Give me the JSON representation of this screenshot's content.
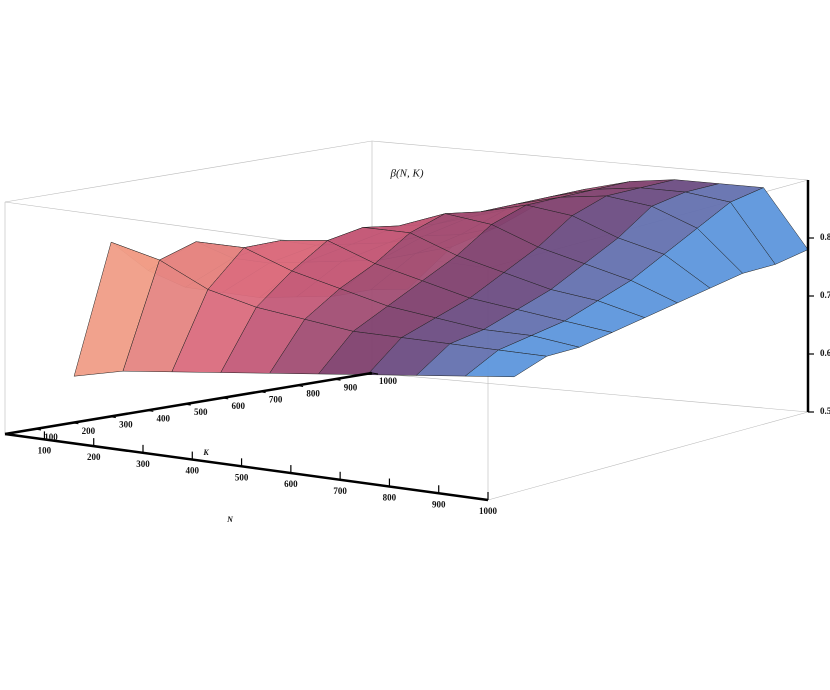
{
  "chart_data": {
    "type": "surface",
    "title": "β(N, K)",
    "x_label": "N",
    "y_label": "K",
    "xlim": [
      20,
      1000
    ],
    "ylim": [
      20,
      1000
    ],
    "zlim": [
      0.5,
      0.9
    ],
    "xticks": [
      100,
      200,
      300,
      400,
      500,
      600,
      700,
      800,
      900,
      1000
    ],
    "yticks": [
      100,
      200,
      300,
      400,
      500,
      600,
      700,
      800,
      900,
      1000
    ],
    "zticks": [
      0.5,
      0.6,
      0.7,
      0.8
    ],
    "x": [
      100,
      200,
      300,
      400,
      500,
      600,
      700,
      800,
      900,
      1000
    ],
    "y": [
      100,
      200,
      300,
      400,
      500,
      600,
      700,
      800,
      900,
      1000
    ],
    "z": [
      [
        0.6,
        0.82,
        0.76,
        0.72,
        0.7,
        0.68,
        0.67,
        0.66,
        0.66,
        0.65
      ],
      [
        0.62,
        0.8,
        0.82,
        0.78,
        0.76,
        0.75,
        0.74,
        0.73,
        0.73,
        0.73
      ],
      [
        0.63,
        0.76,
        0.82,
        0.82,
        0.8,
        0.79,
        0.78,
        0.78,
        0.77,
        0.77
      ],
      [
        0.64,
        0.74,
        0.79,
        0.83,
        0.84,
        0.83,
        0.82,
        0.82,
        0.82,
        0.82
      ],
      [
        0.65,
        0.73,
        0.77,
        0.8,
        0.84,
        0.86,
        0.85,
        0.85,
        0.85,
        0.85
      ],
      [
        0.66,
        0.72,
        0.75,
        0.78,
        0.81,
        0.85,
        0.87,
        0.87,
        0.87,
        0.87
      ],
      [
        0.67,
        0.72,
        0.74,
        0.76,
        0.79,
        0.82,
        0.86,
        0.88,
        0.88,
        0.88
      ],
      [
        0.68,
        0.72,
        0.73,
        0.75,
        0.77,
        0.8,
        0.83,
        0.87,
        0.88,
        0.88
      ],
      [
        0.69,
        0.72,
        0.73,
        0.74,
        0.76,
        0.78,
        0.81,
        0.84,
        0.87,
        0.88
      ],
      [
        0.7,
        0.72,
        0.72,
        0.73,
        0.74,
        0.75,
        0.76,
        0.77,
        0.77,
        0.78
      ]
    ],
    "colormap": [
      "#f6a98a",
      "#d4607a",
      "#6e3a6c",
      "#5aa8f2"
    ]
  }
}
